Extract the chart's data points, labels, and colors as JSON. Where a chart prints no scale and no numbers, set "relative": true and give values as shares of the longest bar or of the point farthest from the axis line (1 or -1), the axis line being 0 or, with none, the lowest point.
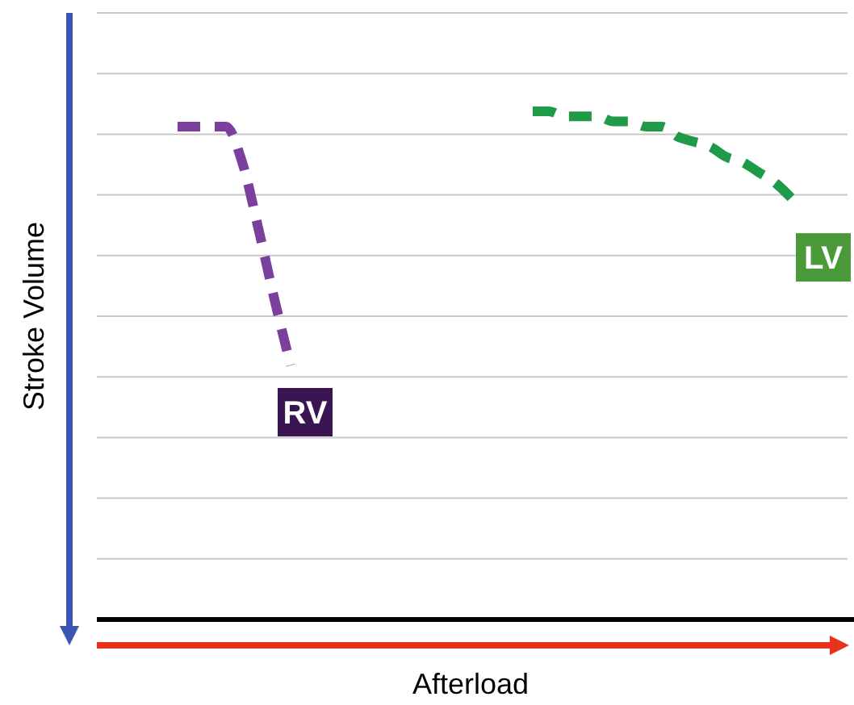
{
  "chart_data": {
    "type": "line",
    "relative": true,
    "xlabel": "Afterload",
    "ylabel": "Stroke Volume",
    "grid": "y",
    "marker": "none",
    "line_style": "dashed",
    "categories": [
      null,
      null,
      null,
      null,
      null,
      null,
      null,
      null,
      null,
      null,
      null,
      null,
      null,
      null,
      null,
      null,
      null,
      null,
      null,
      null,
      null,
      null,
      null,
      null,
      null,
      null,
      null,
      null,
      null,
      null,
      null,
      null,
      null,
      null,
      null,
      null,
      null,
      null,
      null,
      null,
      null
    ],
    "series": [
      {
        "name": "RV",
        "color": "#7b3f9e",
        "values": [
          0.97,
          0.97,
          0.97,
          0.97,
          0.9,
          0.77,
          0.63,
          0.5,
          null,
          null,
          null,
          null,
          null,
          null,
          null,
          null,
          null,
          null,
          null,
          null,
          null,
          null,
          null,
          null,
          null,
          null,
          null,
          null,
          null,
          null,
          null,
          null,
          null,
          null,
          null,
          null,
          null,
          null,
          null,
          null,
          null
        ]
      },
      {
        "name": "LV",
        "color": "#1f9a48",
        "values": [
          null,
          null,
          null,
          null,
          null,
          null,
          null,
          null,
          null,
          null,
          null,
          null,
          null,
          null,
          null,
          null,
          null,
          null,
          null,
          null,
          null,
          null,
          1.0,
          1.0,
          0.99,
          0.99,
          0.99,
          0.98,
          0.98,
          0.97,
          0.97,
          0.95,
          0.94,
          0.93,
          0.91,
          0.9,
          0.88,
          0.86,
          0.83,
          null,
          null
        ]
      }
    ]
  }
}
